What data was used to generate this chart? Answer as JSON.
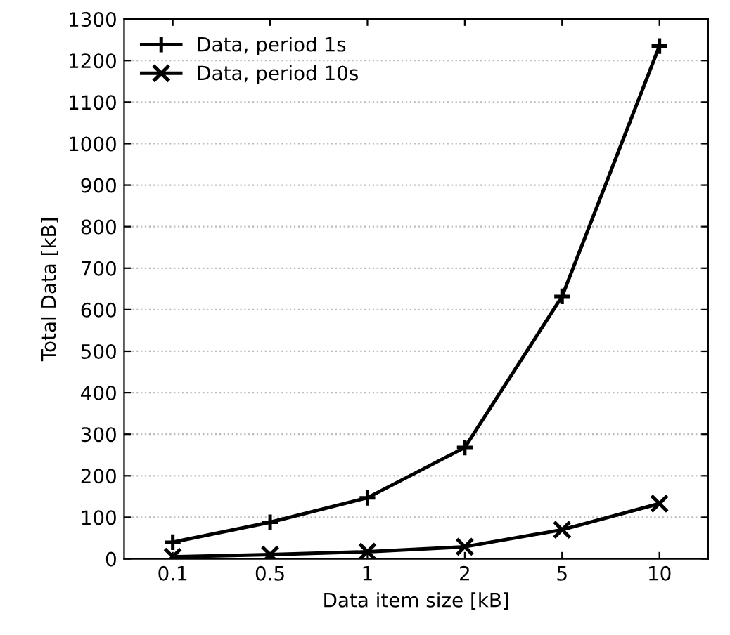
{
  "chart_data": {
    "type": "line",
    "xlabel": "Data item size [kB]",
    "ylabel": "Total Data [kB]",
    "categories": [
      "0.1",
      "0.5",
      "1",
      "2",
      "5",
      "10"
    ],
    "series": [
      {
        "name": "Data, period 1s",
        "color": "#000000",
        "marker": "plus",
        "values": [
          40,
          88,
          147,
          268,
          632,
          1235
        ]
      },
      {
        "name": "Data, period 10s",
        "color": "#000000",
        "marker": "cross",
        "values": [
          5,
          10,
          17,
          29,
          70,
          133
        ]
      }
    ],
    "ylim": [
      0,
      1300
    ],
    "yticks": [
      0,
      100,
      200,
      300,
      400,
      500,
      600,
      700,
      800,
      900,
      1000,
      1100,
      1200,
      1300
    ],
    "grid": "y",
    "legend": "top left",
    "line_style": "solid"
  }
}
